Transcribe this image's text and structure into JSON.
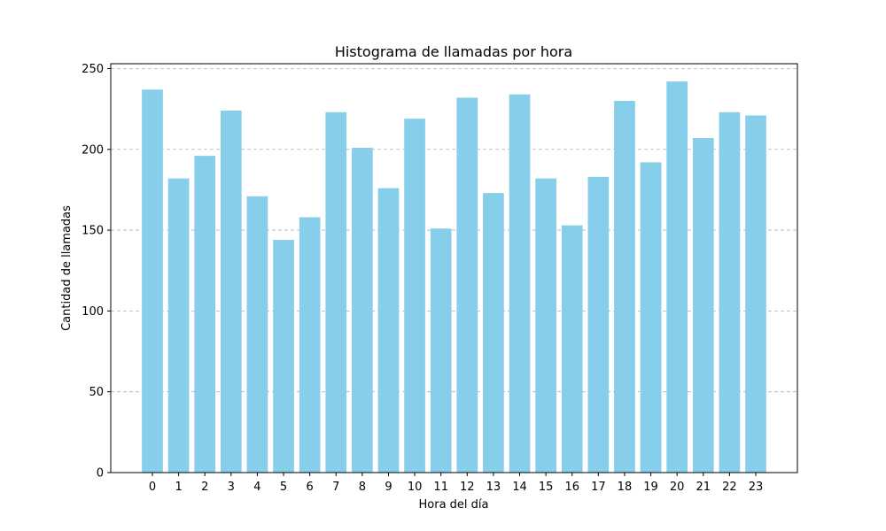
{
  "chart_data": {
    "type": "bar",
    "title": "Histograma de llamadas por hora",
    "xlabel": "Hora del día",
    "ylabel": "Cantidad de llamadas",
    "categories": [
      "0",
      "1",
      "2",
      "3",
      "4",
      "5",
      "6",
      "7",
      "8",
      "9",
      "10",
      "11",
      "12",
      "13",
      "14",
      "15",
      "16",
      "17",
      "18",
      "19",
      "20",
      "21",
      "22",
      "23"
    ],
    "values": [
      237,
      182,
      196,
      224,
      171,
      144,
      158,
      223,
      201,
      176,
      219,
      151,
      232,
      173,
      234,
      182,
      153,
      183,
      230,
      192,
      242,
      207,
      223,
      221
    ],
    "ylim": [
      0,
      253
    ],
    "yticks": [
      "0",
      "50",
      "100",
      "150",
      "200",
      "250"
    ],
    "grid": "y-dashed",
    "bar_color": "#87ceeb"
  }
}
